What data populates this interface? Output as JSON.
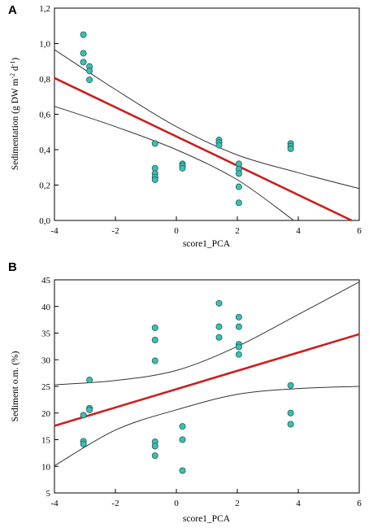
{
  "chart_data": [
    {
      "type": "scatter",
      "panel_label": "A",
      "xlabel": "score1_PCA",
      "ylabel": "Sedimentation (g DW m",
      "ylabel_sup1": "-2",
      "ylabel_mid": " d",
      "ylabel_sup2": "-1",
      "ylabel_end": ")",
      "xlim": [
        -4,
        6
      ],
      "ylim": [
        0,
        1.2
      ],
      "xticks": [
        -4,
        -2,
        0,
        2,
        4,
        6
      ],
      "yticks": [
        0,
        0.2,
        0.4,
        0.6,
        0.8,
        1.0,
        1.2
      ],
      "xtick_labels": [
        "-4",
        "-2",
        "0",
        "2",
        "4",
        "6"
      ],
      "ytick_labels": [
        "0,0",
        "0,2",
        "0,4",
        "0,6",
        "0,8",
        "1,0",
        "1,2"
      ],
      "points": [
        [
          -3.05,
          1.05
        ],
        [
          -3.05,
          0.945
        ],
        [
          -3.05,
          0.895
        ],
        [
          -2.85,
          0.87
        ],
        [
          -2.85,
          0.845
        ],
        [
          -2.85,
          0.795
        ],
        [
          -0.7,
          0.435
        ],
        [
          -0.7,
          0.295
        ],
        [
          -0.7,
          0.265
        ],
        [
          -0.7,
          0.245
        ],
        [
          -0.7,
          0.23
        ],
        [
          0.2,
          0.32
        ],
        [
          0.2,
          0.31
        ],
        [
          0.2,
          0.295
        ],
        [
          1.4,
          0.455
        ],
        [
          1.4,
          0.44
        ],
        [
          1.4,
          0.425
        ],
        [
          2.05,
          0.32
        ],
        [
          2.05,
          0.29
        ],
        [
          2.05,
          0.265
        ],
        [
          2.05,
          0.19
        ],
        [
          2.05,
          0.1
        ],
        [
          3.75,
          0.435
        ],
        [
          3.75,
          0.42
        ],
        [
          3.75,
          0.405
        ]
      ],
      "fit_line": [
        [
          -4,
          0.805
        ],
        [
          5.75,
          0.0
        ]
      ],
      "ci_upper": [
        [
          -4,
          0.965
        ],
        [
          -2,
          0.74
        ],
        [
          0,
          0.53
        ],
        [
          2,
          0.37
        ],
        [
          4,
          0.27
        ],
        [
          6,
          0.18
        ]
      ],
      "ci_lower": [
        [
          -4,
          0.645
        ],
        [
          -2,
          0.53
        ],
        [
          0,
          0.4
        ],
        [
          2,
          0.23
        ],
        [
          3.85,
          0.0
        ]
      ],
      "grid": false,
      "colors": {
        "point_fill": "#3cbfb2",
        "point_edge": "#1f5f59",
        "fit": "#cc1f1f",
        "ci": "#333333"
      }
    },
    {
      "type": "scatter",
      "panel_label": "B",
      "xlabel": "score1_PCA",
      "ylabel": "Sediment o.m. (%)",
      "xlim": [
        -4,
        6
      ],
      "ylim": [
        5,
        45
      ],
      "xticks": [
        -4,
        -2,
        0,
        2,
        4,
        6
      ],
      "yticks": [
        5,
        10,
        15,
        20,
        25,
        30,
        35,
        40,
        45
      ],
      "xtick_labels": [
        "-4",
        "-2",
        "0",
        "2",
        "4",
        "6"
      ],
      "ytick_labels": [
        "5",
        "10",
        "15",
        "20",
        "25",
        "30",
        "35",
        "40",
        "45"
      ],
      "points": [
        [
          -3.05,
          19.6
        ],
        [
          -3.05,
          14.7
        ],
        [
          -3.05,
          14.2
        ],
        [
          -2.85,
          26.2
        ],
        [
          -2.85,
          20.9
        ],
        [
          -2.85,
          20.6
        ],
        [
          -0.7,
          36.0
        ],
        [
          -0.7,
          33.7
        ],
        [
          -0.7,
          29.8
        ],
        [
          -0.7,
          14.6
        ],
        [
          -0.7,
          13.8
        ],
        [
          -0.7,
          12.0
        ],
        [
          0.2,
          17.5
        ],
        [
          0.2,
          15.0
        ],
        [
          0.2,
          9.2
        ],
        [
          1.4,
          40.6
        ],
        [
          1.4,
          36.2
        ],
        [
          1.4,
          34.2
        ],
        [
          2.05,
          38.0
        ],
        [
          2.05,
          36.2
        ],
        [
          2.05,
          32.9
        ],
        [
          2.05,
          32.4
        ],
        [
          2.05,
          31.0
        ],
        [
          3.75,
          25.2
        ],
        [
          3.75,
          20.0
        ],
        [
          3.75,
          17.9
        ]
      ],
      "fit_line": [
        [
          -4,
          17.6
        ],
        [
          6,
          34.8
        ]
      ],
      "ci_upper": [
        [
          -4,
          25.3
        ],
        [
          -2,
          26.1
        ],
        [
          0,
          28.0
        ],
        [
          2,
          32.5
        ],
        [
          4,
          38.5
        ],
        [
          6,
          44.6
        ]
      ],
      "ci_lower": [
        [
          -4,
          10.1
        ],
        [
          -2,
          16.8
        ],
        [
          0,
          20.6
        ],
        [
          2,
          23.5
        ],
        [
          4,
          24.6
        ],
        [
          6,
          25.0
        ]
      ],
      "grid": false,
      "colors": {
        "point_fill": "#3cbfb2",
        "point_edge": "#1f5f59",
        "fit": "#cc1f1f",
        "ci": "#333333"
      }
    }
  ]
}
